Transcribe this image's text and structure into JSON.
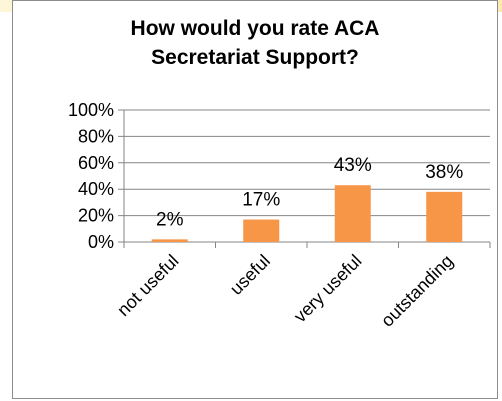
{
  "chart_data": {
    "type": "bar",
    "title_lines": [
      "How would you rate ACA",
      "Secretariat Support?"
    ],
    "categories": [
      "not useful",
      "useful",
      "very useful",
      "outstanding"
    ],
    "values": [
      2,
      17,
      43,
      38
    ],
    "data_labels": [
      "2%",
      "17%",
      "43%",
      "38%"
    ],
    "y_ticks": [
      0,
      20,
      40,
      60,
      80,
      100
    ],
    "y_tick_labels": [
      "0%",
      "20%",
      "40%",
      "60%",
      "80%",
      "100%"
    ],
    "ylim": [
      0,
      100
    ],
    "grid": true,
    "legend": "none",
    "colors": {
      "bar": "#f79646",
      "grid": "#868686",
      "axis": "#868686",
      "frame": "#8c8c8c"
    }
  }
}
